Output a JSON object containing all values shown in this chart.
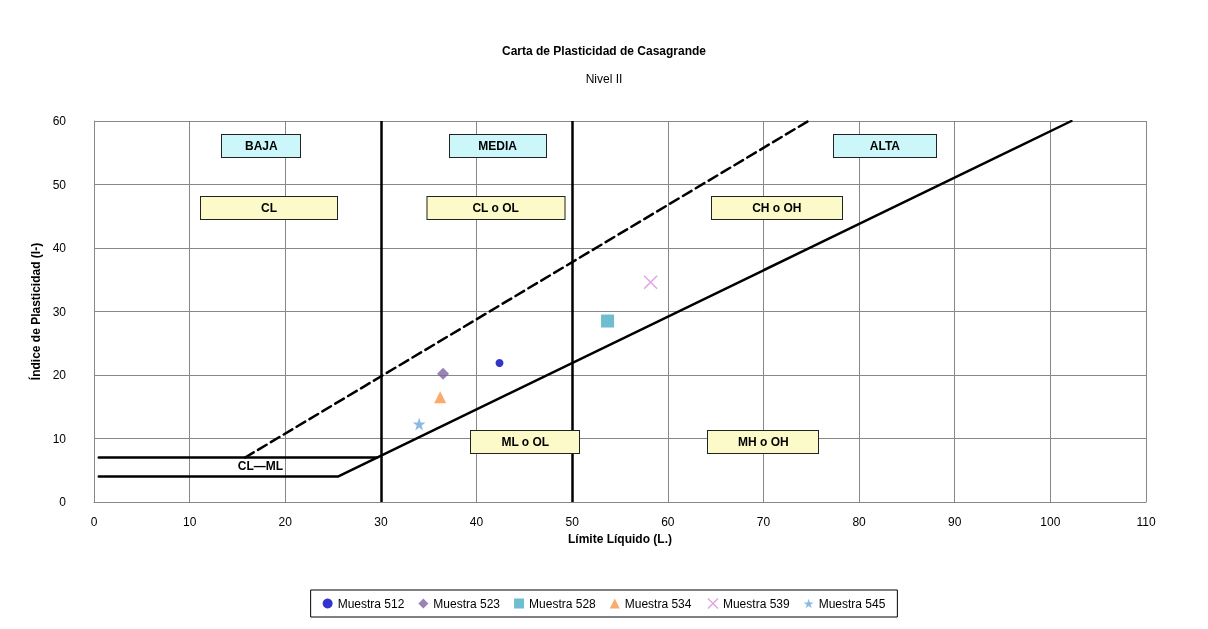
{
  "chart_data": {
    "type": "scatter",
    "title": "Carta de Plasticidad de Casagrande",
    "subtitle": "Nivel II",
    "xlabel": "Límite Líquido (L.)",
    "ylabel": "Índice de Plasticidad (I-)",
    "xlim": [
      0,
      110
    ],
    "xticks": [
      0,
      10,
      20,
      30,
      40,
      50,
      60,
      70,
      80,
      90,
      100,
      110
    ],
    "ylim": [
      0,
      60
    ],
    "yticks": [
      0,
      10,
      20,
      30,
      40,
      50,
      60
    ],
    "grid": true,
    "legend": "bottom",
    "series": [
      {
        "name": "Muestra 512",
        "color": "#0000c0",
        "marker": "circle",
        "x": [
          42.4
        ],
        "values": [
          21.9
        ]
      },
      {
        "name": "Muestra 523",
        "color": "#8064a2",
        "marker": "diamond",
        "x": [
          36.5
        ],
        "values": [
          20.2
        ]
      },
      {
        "name": "Muestra 528",
        "color": "#4bacc6",
        "marker": "square",
        "x": [
          53.7
        ],
        "values": [
          28.5
        ]
      },
      {
        "name": "Muestra 534",
        "color": "#f79646",
        "marker": "triangle",
        "x": [
          36.2
        ],
        "values": [
          16.5
        ]
      },
      {
        "name": "Muestra 539",
        "color": "#d98ed9",
        "marker": "cross",
        "x": [
          58.2
        ],
        "values": [
          34.6
        ]
      },
      {
        "name": "Muestra 545",
        "color": "#6fa8dc",
        "marker": "star",
        "x": [
          34.0
        ],
        "values": [
          12.3
        ]
      },
      {
        "type": "line",
        "color": "#000000",
        "line_style": "solid",
        "x": [
          0.5,
          25.5,
          102.2
        ],
        "values": [
          4,
          4,
          60
        ]
      },
      {
        "type": "line",
        "color": "#000000",
        "line_style": "solid",
        "x": [
          0.5,
          29.6
        ],
        "values": [
          7,
          7
        ]
      },
      {
        "type": "line",
        "color": "#000000",
        "line_style": "dashed",
        "x": [
          15.8,
          74.7
        ],
        "values": [
          7,
          60
        ]
      }
    ],
    "ref_lines": [
      {
        "axis": "x",
        "value": 30,
        "color": "#000000"
      },
      {
        "axis": "x",
        "value": 50,
        "color": "#000000"
      }
    ],
    "annotations": [
      "BAJA",
      "MEDIA",
      "ALTA",
      "CL",
      "CL o OL",
      "CH o OH",
      "ML o OL",
      "MH o OH",
      "CL—ML"
    ]
  }
}
